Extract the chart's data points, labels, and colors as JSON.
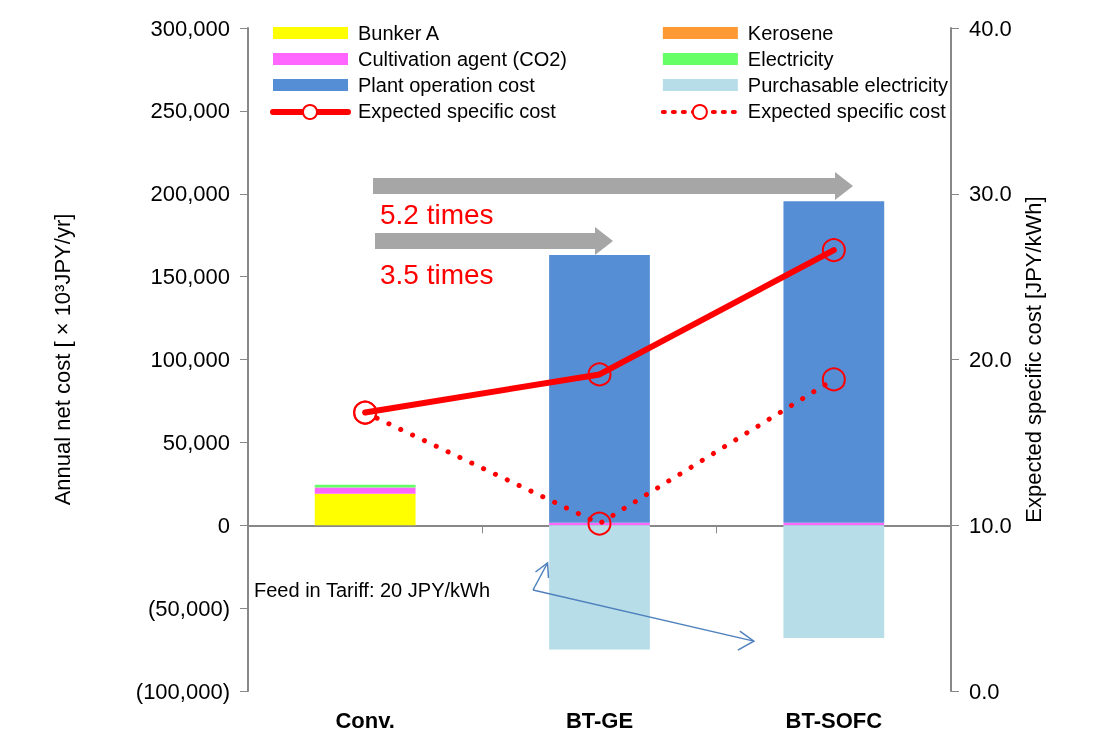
{
  "chart_data": {
    "type": "bar",
    "stacked": true,
    "categories": [
      "Conv.",
      "BT-GE",
      "BT-SOFC"
    ],
    "ylabel": "Annual net cost [ × 10³JPY/yr]",
    "y2label": "Expected specific cost [JPY/kWh]",
    "ylim": [
      -100000,
      300000
    ],
    "yticks": [
      {
        "value": -100000,
        "label": "(100,000)"
      },
      {
        "value": -50000,
        "label": "(50,000)"
      },
      {
        "value": 0,
        "label": "0"
      },
      {
        "value": 50000,
        "label": "50,000"
      },
      {
        "value": 100000,
        "label": "100,000"
      },
      {
        "value": 150000,
        "label": "150,000"
      },
      {
        "value": 200000,
        "label": "200,000"
      },
      {
        "value": 250000,
        "label": "250,000"
      },
      {
        "value": 300000,
        "label": "300,000"
      }
    ],
    "y2lim": [
      0,
      40
    ],
    "y2ticks": [
      {
        "value": 0,
        "label": "0.0"
      },
      {
        "value": 10,
        "label": "10.0"
      },
      {
        "value": 20,
        "label": "20.0"
      },
      {
        "value": 30,
        "label": "30.0"
      },
      {
        "value": 40,
        "label": "40.0"
      }
    ],
    "series": [
      {
        "name": "Bunker A",
        "color": "#ffff00",
        "values": [
          19000,
          0,
          0
        ]
      },
      {
        "name": "Kerosene",
        "color": "#ff9933",
        "values": [
          0,
          0,
          0
        ]
      },
      {
        "name": "Cultivation agent (CO2)",
        "color": "#ff66ff",
        "values": [
          3700,
          1500,
          1500
        ]
      },
      {
        "name": "Electricity",
        "color": "#66ff66",
        "values": [
          1700,
          0,
          0
        ]
      },
      {
        "name": "Plant operation cost",
        "color": "#558ed5",
        "values": [
          0,
          161500,
          194000
        ]
      },
      {
        "name": "Purchasable electricity",
        "color": "#b7dde8",
        "values": [
          0,
          -75000,
          -68000
        ]
      },
      {
        "name": "Expected specific cost",
        "type": "line",
        "axis": "y2",
        "color": "#ff0000",
        "line_style": "solid",
        "marker": "circle",
        "values": [
          16.8,
          19.1,
          26.6
        ]
      },
      {
        "name": "Expected specific cost",
        "type": "line",
        "axis": "y2",
        "color": "#ff0000",
        "line_style": "dotted",
        "marker": "circle",
        "values": [
          16.8,
          10.1,
          18.8
        ]
      }
    ],
    "annotations": [
      "5.2 times",
      "3.5 times",
      "Feed in Tariff: 20 JPY/kWh"
    ],
    "legend": "top"
  }
}
